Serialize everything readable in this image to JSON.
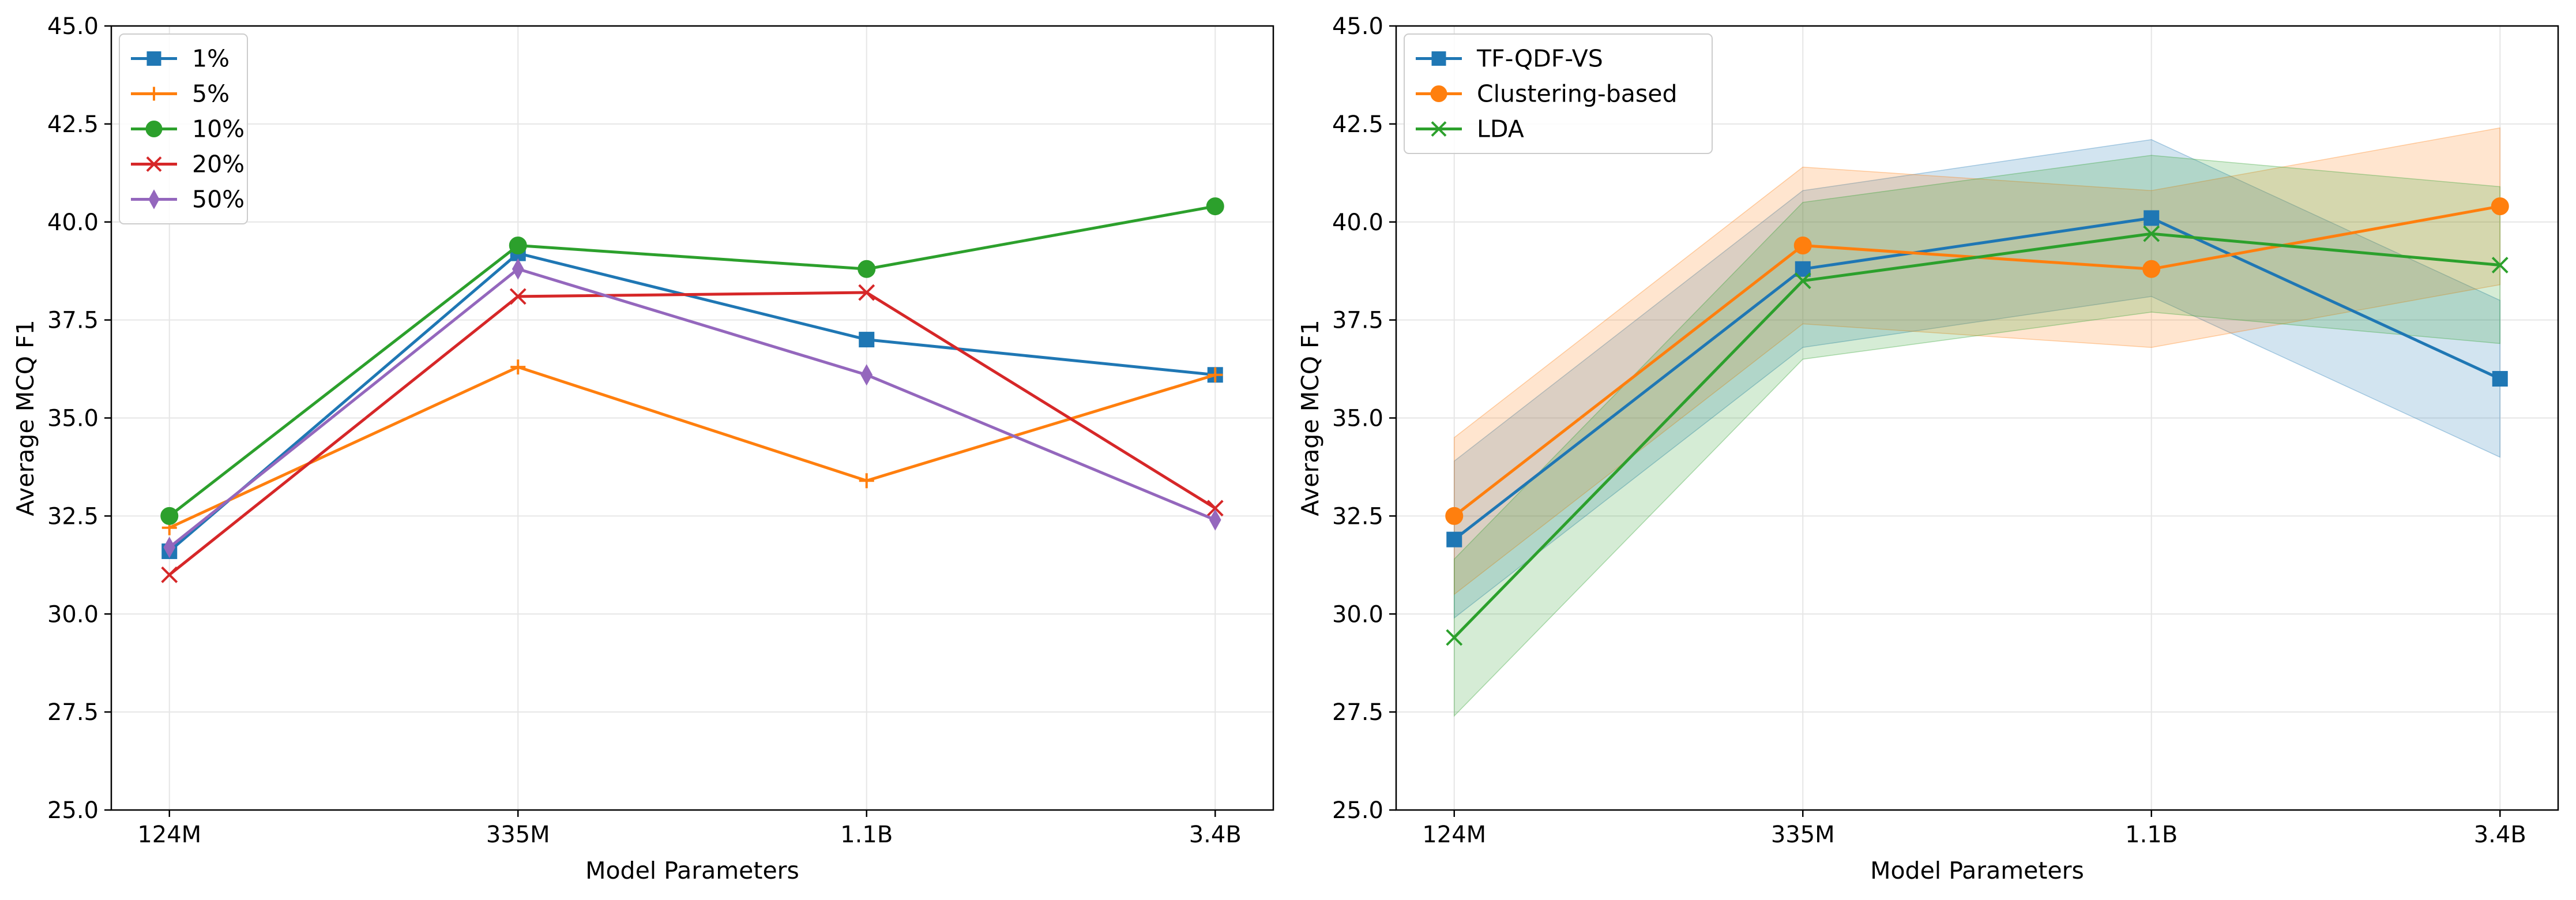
{
  "chart_data": [
    {
      "type": "line",
      "title": "",
      "xlabel": "Model Parameters",
      "ylabel": "Average MCQ F1",
      "categories": [
        "124M",
        "335M",
        "1.1B",
        "3.4B"
      ],
      "ylim": [
        25.0,
        45.0
      ],
      "yticks": [
        "25.0",
        "27.5",
        "30.0",
        "32.5",
        "35.0",
        "37.5",
        "40.0",
        "42.5",
        "45.0"
      ],
      "grid": true,
      "legend_position": "top-left",
      "series": [
        {
          "name": "1%",
          "values": [
            31.6,
            39.2,
            37.0,
            36.1
          ],
          "color": "#1f77b4",
          "marker": "square"
        },
        {
          "name": "5%",
          "values": [
            32.2,
            36.3,
            33.4,
            36.1
          ],
          "color": "#ff7f0e",
          "marker": "plus"
        },
        {
          "name": "10%",
          "values": [
            32.5,
            39.4,
            38.8,
            40.4
          ],
          "color": "#2ca02c",
          "marker": "circle"
        },
        {
          "name": "20%",
          "values": [
            31.0,
            38.1,
            38.2,
            32.7
          ],
          "color": "#d62728",
          "marker": "x"
        },
        {
          "name": "50%",
          "values": [
            31.7,
            38.8,
            36.1,
            32.4
          ],
          "color": "#9467bd",
          "marker": "diamond"
        }
      ]
    },
    {
      "type": "line",
      "title": "",
      "xlabel": "Model Parameters",
      "ylabel": "Average MCQ F1",
      "categories": [
        "124M",
        "335M",
        "1.1B",
        "3.4B"
      ],
      "ylim": [
        25.0,
        45.0
      ],
      "yticks": [
        "25.0",
        "27.5",
        "30.0",
        "32.5",
        "35.0",
        "37.5",
        "40.0",
        "42.5",
        "45.0"
      ],
      "grid": true,
      "legend_position": "top-left",
      "series": [
        {
          "name": "TF-QDF-VS",
          "values": [
            31.9,
            38.8,
            40.1,
            36.0
          ],
          "lower": [
            29.9,
            36.8,
            38.1,
            34.0
          ],
          "upper": [
            33.9,
            40.8,
            42.1,
            38.0
          ],
          "color": "#1f77b4",
          "marker": "square"
        },
        {
          "name": "Clustering-based",
          "values": [
            32.5,
            39.4,
            38.8,
            40.4
          ],
          "lower": [
            30.5,
            37.4,
            36.8,
            38.4
          ],
          "upper": [
            34.5,
            41.4,
            40.8,
            42.4
          ],
          "color": "#ff7f0e",
          "marker": "circle"
        },
        {
          "name": "LDA",
          "values": [
            29.4,
            38.5,
            39.7,
            38.9
          ],
          "lower": [
            27.4,
            36.5,
            37.7,
            36.9
          ],
          "upper": [
            31.4,
            40.5,
            41.7,
            40.9
          ],
          "color": "#2ca02c",
          "marker": "x"
        }
      ]
    }
  ]
}
